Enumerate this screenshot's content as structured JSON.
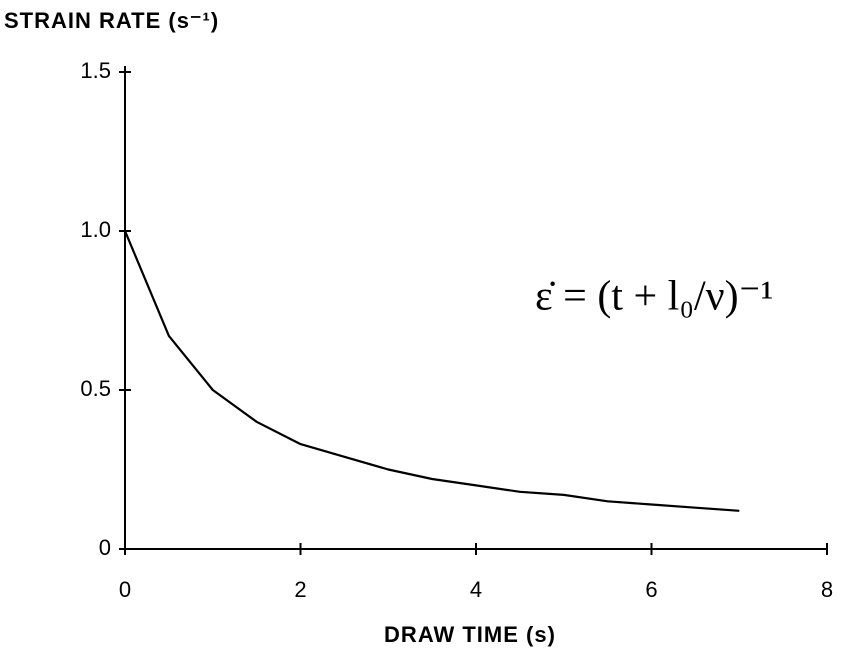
{
  "chart_data": {
    "type": "line",
    "y_label": "STRAIN RATE (s⁻¹)",
    "x_label": "DRAW TIME (s)",
    "annotation": "ε̇ = (t + l₀/ν)⁻¹",
    "x": [
      0,
      0.5,
      1,
      1.5,
      2,
      2.5,
      3,
      3.5,
      4,
      4.5,
      5,
      5.5,
      6,
      6.5,
      7
    ],
    "values": [
      1,
      0.67,
      0.5,
      0.4,
      0.33,
      0.29,
      0.25,
      0.22,
      0.2,
      0.18,
      0.17,
      0.15,
      0.14,
      0.13,
      0.12
    ],
    "color": "#000000",
    "xlim": [
      0,
      8
    ],
    "xticks": [
      0,
      2,
      4,
      6,
      8
    ],
    "ylim": [
      0,
      1.5
    ],
    "yticks": [
      0,
      0.5,
      {
        "value": 1,
        "label": "1.0"
      },
      1.5
    ],
    "grid": false
  }
}
